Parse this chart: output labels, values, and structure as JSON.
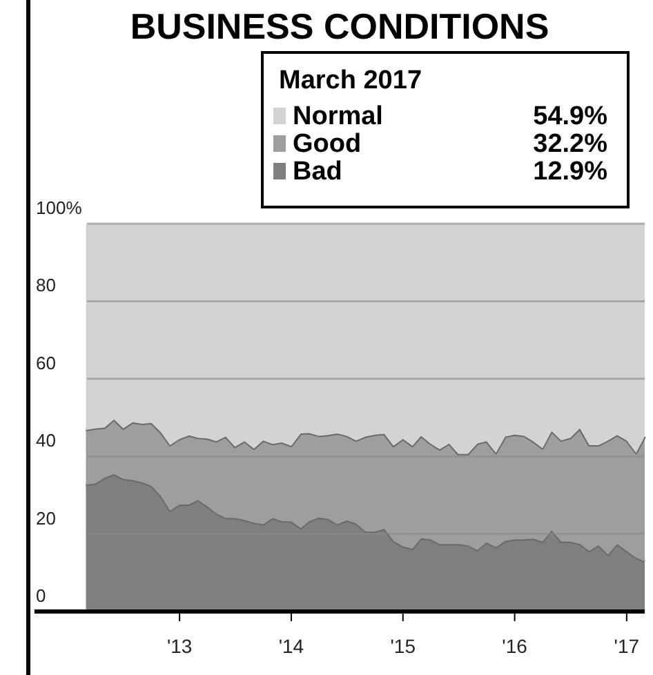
{
  "chart_data": {
    "type": "area",
    "stacked": true,
    "title": "BUSINESS CONDITIONS",
    "legend_title": "March 2017",
    "legend": "top right",
    "grid": "y",
    "annotations": [
      "54.9%",
      "32.2%",
      "12.9%"
    ],
    "x": [
      "2012-03",
      "2012-04",
      "2012-05",
      "2012-06",
      "2012-07",
      "2012-08",
      "2012-09",
      "2012-10",
      "2012-11",
      "2012-12",
      "2013-01",
      "2013-02",
      "2013-03",
      "2013-04",
      "2013-05",
      "2013-06",
      "2013-07",
      "2013-08",
      "2013-09",
      "2013-10",
      "2013-11",
      "2013-12",
      "2014-01",
      "2014-02",
      "2014-03",
      "2014-04",
      "2014-05",
      "2014-06",
      "2014-07",
      "2014-08",
      "2014-09",
      "2014-10",
      "2014-11",
      "2014-12",
      "2015-01",
      "2015-02",
      "2015-03",
      "2015-04",
      "2015-05",
      "2015-06",
      "2015-07",
      "2015-08",
      "2015-09",
      "2015-10",
      "2015-11",
      "2015-12",
      "2016-01",
      "2016-02",
      "2016-03",
      "2016-04",
      "2016-05",
      "2016-06",
      "2016-07",
      "2016-08",
      "2016-09",
      "2016-10",
      "2016-11",
      "2016-12",
      "2017-01",
      "2017-02",
      "2017-03"
    ],
    "xlim": [
      "2011-09-15",
      "2017-03"
    ],
    "xticks": [
      {
        "value": "2013-01",
        "label": "'13"
      },
      {
        "value": "2014-01",
        "label": "'14"
      },
      {
        "value": "2015-01",
        "label": "'15"
      },
      {
        "value": "2016-01",
        "label": "'16"
      },
      {
        "value": "2017-01",
        "label": "'17"
      }
    ],
    "ylim": [
      0,
      100
    ],
    "yticks": [
      0,
      20,
      40,
      60,
      80,
      {
        "value": 100,
        "label": "100%"
      }
    ],
    "series": [
      {
        "name": "Bad",
        "color": "#7f7f7f",
        "values": [
          32.7,
          33,
          34.5,
          35.4,
          34.2,
          33.9,
          33.3,
          32.4,
          29.8,
          26,
          27.6,
          27.6,
          28.8,
          27.2,
          25.3,
          24.1,
          24.1,
          23.6,
          22.9,
          22.5,
          24.1,
          23.3,
          23.2,
          21.5,
          23.3,
          24.2,
          23.9,
          22.5,
          23.5,
          22.7,
          20.6,
          20.6,
          21.3,
          18.2,
          16.8,
          16.2,
          18.9,
          18.6,
          17.4,
          17.4,
          17.4,
          17.1,
          15.9,
          17.8,
          16.6,
          18.2,
          18.6,
          18.6,
          18.8,
          18,
          20.9,
          18,
          18,
          17.4,
          15.6,
          17.1,
          14.7,
          17.4,
          15.6,
          13.9,
          12.9
        ]
      },
      {
        "name": "Good",
        "color": "#9e9e9e",
        "values": [
          14.1,
          14.2,
          12.9,
          14.1,
          13,
          14.9,
          15.1,
          16.2,
          16.4,
          16.9,
          16.9,
          17.8,
          16,
          17.4,
          18.6,
          21,
          18.4,
          20.3,
          19.1,
          21.6,
          19.1,
          20.3,
          19.5,
          24.4,
          22.7,
          21.1,
          21.6,
          23.4,
          21.8,
          21.4,
          24.5,
          25,
          24.5,
          24.5,
          27.7,
          26.5,
          26.4,
          24.7,
          24.4,
          25.9,
          23.2,
          23.5,
          27.4,
          26.1,
          24.3,
          26.9,
          27,
          26.7,
          25.1,
          24.1,
          25.6,
          26.1,
          26.8,
          29.8,
          27.3,
          25.8,
          29.4,
          28.1,
          28.5,
          27,
          32.2
        ]
      },
      {
        "name": "Normal",
        "color": "#d3d3d3",
        "values": [
          53.2,
          52.8,
          52.6,
          50.5,
          52.8,
          51.2,
          51.6,
          51.4,
          53.8,
          57.1,
          55.5,
          54.6,
          55.2,
          55.4,
          56.1,
          54.9,
          57.5,
          56.1,
          58,
          55.9,
          56.8,
          56.4,
          57.3,
          54.1,
          54,
          54.7,
          54.5,
          54.1,
          54.7,
          55.9,
          54.9,
          54.4,
          54.2,
          57.3,
          55.5,
          57.3,
          54.7,
          56.7,
          58.2,
          56.7,
          59.4,
          59.4,
          56.7,
          56.1,
          59.1,
          54.9,
          54.4,
          54.7,
          56.1,
          57.9,
          53.5,
          55.9,
          55.2,
          52.8,
          57.1,
          57.1,
          55.9,
          54.5,
          55.9,
          59.1,
          54.9
        ]
      }
    ]
  }
}
